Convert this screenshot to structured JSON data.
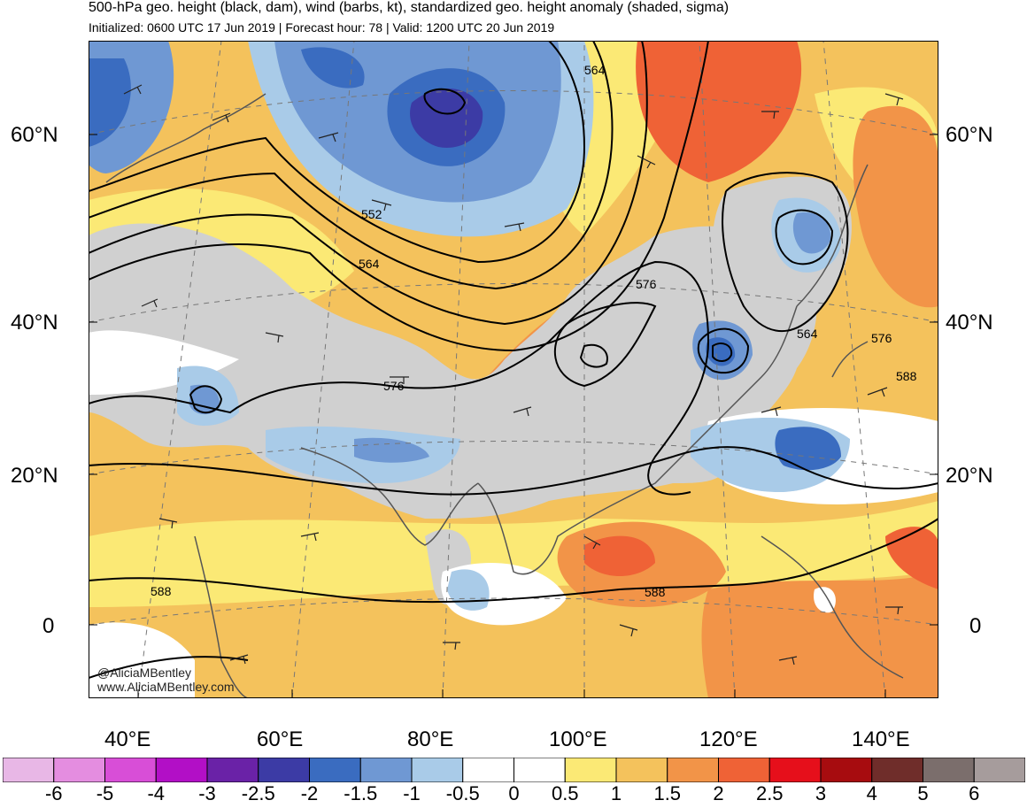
{
  "header": {
    "title": "500-hPa geo. height (black, dam), wind (barbs, kt), standardized geo. height anomaly (shaded, sigma)",
    "subtitle": "Initialized: 0600 UTC 17 Jun 2019 | Forecast hour: 78 | Valid: 1200 UTC 20 Jun 2019"
  },
  "map": {
    "lat_labels": [
      "60°N",
      "40°N",
      "20°N",
      "0"
    ],
    "lon_labels": [
      "40°E",
      "60°E",
      "80°E",
      "100°E",
      "120°E",
      "140°E"
    ],
    "contour_labels": [
      "564",
      "552",
      "564",
      "576",
      "576",
      "564",
      "576",
      "588",
      "588",
      "588"
    ],
    "credits": [
      "@AliciaMBentley",
      "www.AliciaMBentley.com"
    ]
  },
  "colorbar": {
    "ticks": [
      "-6",
      "-5",
      "-4",
      "-3",
      "-2.5",
      "-2",
      "-1.5",
      "-1",
      "-0.5",
      "0",
      "0.5",
      "1",
      "1.5",
      "2",
      "2.5",
      "3",
      "4",
      "5",
      "6"
    ],
    "colors": [
      "#e8b7e6",
      "#e48de0",
      "#d84ed7",
      "#b20fc6",
      "#6a22a7",
      "#3c3ba5",
      "#3a6cc0",
      "#6f98d3",
      "#a9cbe8",
      "#ffffff",
      "#ffffff",
      "#fbe975",
      "#f4c25c",
      "#f29448",
      "#ef6236",
      "#e60f1b",
      "#a70c0f",
      "#6f2d2a",
      "#7b6e6c",
      "#a69c9c"
    ]
  },
  "palette": {
    "gray_land": "#d0d0d0",
    "contour": "#000000",
    "coast": "#555555"
  }
}
